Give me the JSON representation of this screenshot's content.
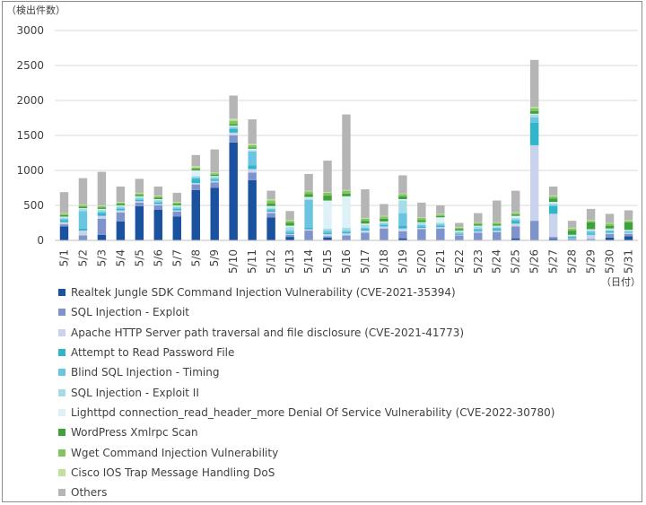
{
  "chart_data": {
    "type": "bar",
    "stacked": true,
    "y_unit_label": "（検出件数）",
    "x_unit_label": "（日付）",
    "ylim": [
      0,
      3000
    ],
    "yticks": [
      0,
      500,
      1000,
      1500,
      2000,
      2500,
      3000
    ],
    "grid": true,
    "legend_position": "bottom",
    "categories": [
      "5/1",
      "5/2",
      "5/3",
      "5/4",
      "5/5",
      "5/6",
      "5/7",
      "5/8",
      "5/9",
      "5/10",
      "5/11",
      "5/12",
      "5/13",
      "5/14",
      "5/15",
      "5/16",
      "5/17",
      "5/18",
      "5/19",
      "5/20",
      "5/21",
      "5/22",
      "5/23",
      "5/24",
      "5/25",
      "5/26",
      "5/27",
      "5/28",
      "5/29",
      "5/30",
      "5/31"
    ],
    "series": [
      {
        "name": "Realtek Jungle SDK Command Injection Vulnerability (CVE-2021-35394)",
        "color": "#1a52a0",
        "values": [
          200,
          10,
          80,
          270,
          490,
          440,
          340,
          720,
          750,
          1400,
          860,
          330,
          50,
          10,
          40,
          10,
          10,
          10,
          30,
          10,
          10,
          10,
          10,
          10,
          30,
          10,
          20,
          10,
          10,
          40,
          60
        ]
      },
      {
        "name": "SQL Injection - Exploit",
        "color": "#8094cc",
        "values": [
          30,
          60,
          230,
          130,
          50,
          60,
          70,
          80,
          80,
          100,
          110,
          60,
          30,
          130,
          20,
          60,
          100,
          160,
          100,
          150,
          160,
          60,
          100,
          110,
          170,
          270,
          30,
          10,
          10,
          50,
          30
        ]
      },
      {
        "name": "Apache HTTP Server path traversal and file disclosure (CVE-2021-41773)",
        "color": "#c9d3ec",
        "values": [
          30,
          70,
          40,
          30,
          20,
          20,
          20,
          20,
          20,
          40,
          50,
          20,
          10,
          20,
          30,
          30,
          30,
          30,
          40,
          20,
          20,
          10,
          20,
          20,
          40,
          1080,
          330,
          10,
          60,
          20,
          20
        ]
      },
      {
        "name": "Attempt to Read Password File",
        "color": "#2fb6c9",
        "values": [
          30,
          30,
          40,
          20,
          20,
          20,
          20,
          60,
          20,
          50,
          50,
          20,
          20,
          20,
          20,
          20,
          20,
          20,
          40,
          20,
          20,
          10,
          20,
          20,
          40,
          320,
          110,
          20,
          20,
          20,
          10
        ]
      },
      {
        "name": "Blind SQL Injection - Timing",
        "color": "#6ac6e0",
        "values": [
          20,
          250,
          20,
          20,
          20,
          20,
          20,
          20,
          20,
          20,
          200,
          20,
          30,
          400,
          30,
          20,
          20,
          20,
          180,
          20,
          20,
          20,
          20,
          20,
          20,
          80,
          20,
          10,
          30,
          10,
          10
        ]
      },
      {
        "name": "SQL Injection - Exploit II",
        "color": "#a6dce8",
        "values": [
          20,
          30,
          30,
          20,
          20,
          20,
          20,
          20,
          20,
          20,
          20,
          20,
          50,
          20,
          30,
          40,
          40,
          20,
          180,
          30,
          20,
          20,
          30,
          20,
          20,
          40,
          20,
          10,
          20,
          20,
          10
        ]
      },
      {
        "name": "Lighttpd connection_read_header_more Denial Of Service Vulnerability (CVE-2022-30780)",
        "color": "#ddf1f6",
        "values": [
          10,
          10,
          10,
          10,
          10,
          10,
          10,
          80,
          10,
          10,
          20,
          20,
          20,
          20,
          400,
          450,
          20,
          10,
          20,
          10,
          80,
          10,
          10,
          10,
          30,
          10,
          20,
          10,
          10,
          10,
          10
        ]
      },
      {
        "name": "WordPress Xmlrpc Scan",
        "color": "#3fa03c",
        "values": [
          20,
          20,
          20,
          20,
          20,
          20,
          20,
          20,
          20,
          20,
          20,
          40,
          40,
          40,
          70,
          40,
          40,
          40,
          40,
          30,
          20,
          20,
          20,
          20,
          20,
          40,
          50,
          60,
          100,
          40,
          110
        ]
      },
      {
        "name": "Wget Command Injection Vulnerability",
        "color": "#80c55d",
        "values": [
          20,
          20,
          20,
          20,
          20,
          20,
          20,
          20,
          20,
          50,
          30,
          40,
          30,
          40,
          40,
          40,
          30,
          30,
          30,
          30,
          20,
          20,
          20,
          20,
          20,
          40,
          30,
          30,
          20,
          30,
          20
        ]
      },
      {
        "name": "Cisco IOS Trap Message Handling DoS",
        "color": "#c3e09d",
        "values": [
          10,
          10,
          10,
          10,
          10,
          10,
          10,
          20,
          10,
          30,
          20,
          20,
          10,
          10,
          10,
          10,
          10,
          10,
          10,
          10,
          10,
          10,
          10,
          10,
          10,
          20,
          10,
          10,
          10,
          10,
          10
        ]
      },
      {
        "name": "Others",
        "color": "#b5b5b5",
        "values": [
          300,
          380,
          480,
          220,
          200,
          130,
          130,
          160,
          330,
          330,
          350,
          120,
          130,
          240,
          450,
          1080,
          410,
          170,
          260,
          210,
          120,
          60,
          130,
          310,
          310,
          670,
          130,
          100,
          160,
          130,
          140
        ]
      }
    ]
  }
}
